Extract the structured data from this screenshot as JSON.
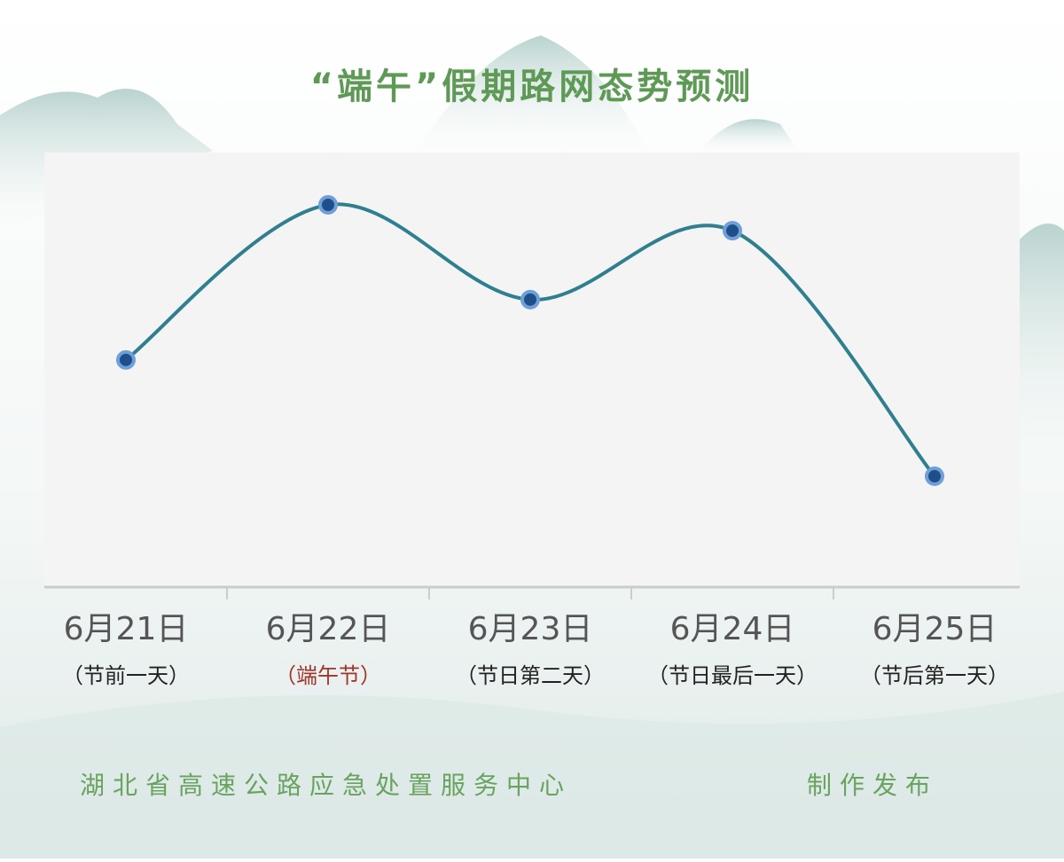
{
  "chart_data": {
    "type": "line",
    "title": "“端午”假期路网态势预测",
    "categories": [
      "6月21日",
      "6月22日",
      "6月23日",
      "6月24日",
      "6月25日"
    ],
    "notes": [
      "（节前一天）",
      "（端午节）",
      "（节日第二天）",
      "（节日最后一天）",
      "（节后第一天）"
    ],
    "values": [
      52,
      88,
      66,
      82,
      25
    ],
    "color": "#2f7f8f",
    "marker_color": "#1e4f8a",
    "publisher": "湖北省高速公路应急处置服务中心",
    "credit": "制作发布"
  }
}
